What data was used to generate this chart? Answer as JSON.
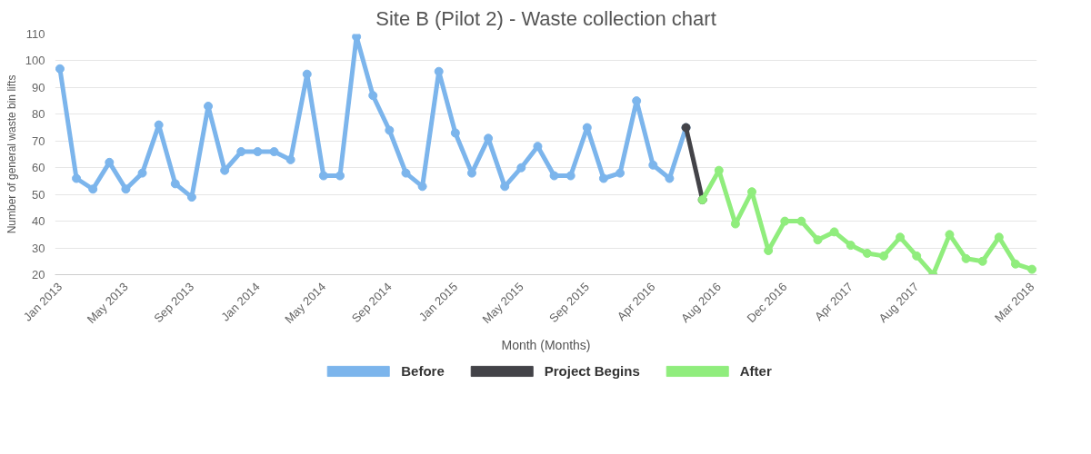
{
  "chart_data": {
    "type": "line",
    "title": "Site B (Pilot 2) - Waste collection chart",
    "xlabel": "Month (Months)",
    "ylabel": "Number of general waste bin lifts",
    "categories": [
      "Jan 2013",
      null,
      null,
      null,
      "May 2013",
      null,
      null,
      null,
      "Sep 2013",
      null,
      null,
      null,
      "Jan 2014",
      null,
      null,
      null,
      "May 2014",
      null,
      null,
      null,
      "Sep 2014",
      null,
      null,
      null,
      "Jan 2015",
      null,
      null,
      null,
      "May 2015",
      null,
      null,
      null,
      "Sep 2015",
      null,
      null,
      null,
      "Apr 2016",
      null,
      null,
      null,
      "Aug 2016",
      null,
      null,
      null,
      "Dec 2016",
      null,
      null,
      null,
      "Apr 2017",
      null,
      null,
      null,
      "Aug 2017",
      null,
      null,
      null,
      null,
      null,
      null,
      "Mar 2018"
    ],
    "series": [
      {
        "name": "Before",
        "color": "#7cb5ec",
        "values": [
          97,
          56,
          52,
          62,
          52,
          58,
          76,
          54,
          49,
          83,
          59,
          66,
          66,
          66,
          63,
          95,
          57,
          57,
          109,
          87,
          74,
          58,
          53,
          96,
          73,
          58,
          71,
          53,
          60,
          68,
          57,
          57,
          75,
          56,
          58,
          85,
          61,
          56,
          75,
          null,
          null,
          null,
          null,
          null,
          null,
          null,
          null,
          null,
          null,
          null,
          null,
          null,
          null,
          null,
          null,
          null,
          null,
          null,
          null,
          null
        ]
      },
      {
        "name": "Project Begins",
        "color": "#434348",
        "values": [
          null,
          null,
          null,
          null,
          null,
          null,
          null,
          null,
          null,
          null,
          null,
          null,
          null,
          null,
          null,
          null,
          null,
          null,
          null,
          null,
          null,
          null,
          null,
          null,
          null,
          null,
          null,
          null,
          null,
          null,
          null,
          null,
          null,
          null,
          null,
          null,
          null,
          null,
          75,
          48,
          null,
          null,
          null,
          null,
          null,
          null,
          null,
          null,
          null,
          null,
          null,
          null,
          null,
          null,
          null,
          null,
          null,
          null,
          null,
          null
        ]
      },
      {
        "name": "After",
        "color": "#90ed7d",
        "values": [
          null,
          null,
          null,
          null,
          null,
          null,
          null,
          null,
          null,
          null,
          null,
          null,
          null,
          null,
          null,
          null,
          null,
          null,
          null,
          null,
          null,
          null,
          null,
          null,
          null,
          null,
          null,
          null,
          null,
          null,
          null,
          null,
          null,
          null,
          null,
          null,
          null,
          null,
          null,
          48,
          59,
          39,
          51,
          29,
          40,
          40,
          33,
          36,
          31,
          28,
          27,
          34,
          27,
          20,
          35,
          26,
          25,
          34,
          24,
          22
        ]
      }
    ],
    "ylim": [
      20,
      110
    ],
    "yticks": [
      20,
      30,
      40,
      50,
      60,
      70,
      80,
      90,
      100,
      110
    ],
    "grid": "y",
    "legend": "bottom",
    "marker": "circle",
    "line_style": "solid"
  }
}
